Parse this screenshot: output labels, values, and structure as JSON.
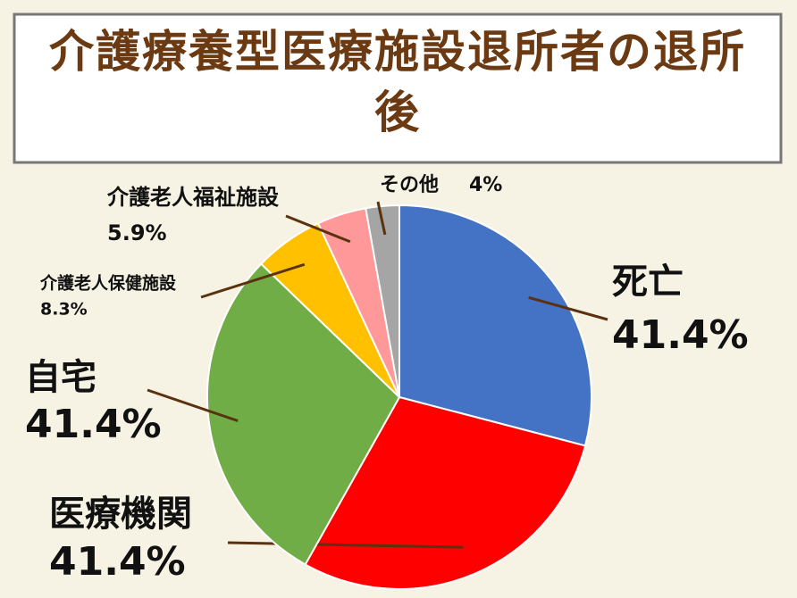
{
  "chart_data": {
    "type": "pie",
    "title": "介護療養型医療施設退所者の退所後",
    "categories": [
      "死亡",
      "医療機関",
      "自宅",
      "介護老人保健施設",
      "介護老人福祉施設",
      "その他"
    ],
    "values": [
      41.4,
      41.4,
      41.4,
      8.3,
      5.9,
      4
    ],
    "value_labels": [
      "41.4%",
      "41.4%",
      "41.4%",
      "8.3%",
      "5.9%",
      "4%"
    ],
    "colors": [
      "#4472c4",
      "#ff0000",
      "#70ad47",
      "#ffc000",
      "#ff9999",
      "#a5a5a5"
    ]
  }
}
